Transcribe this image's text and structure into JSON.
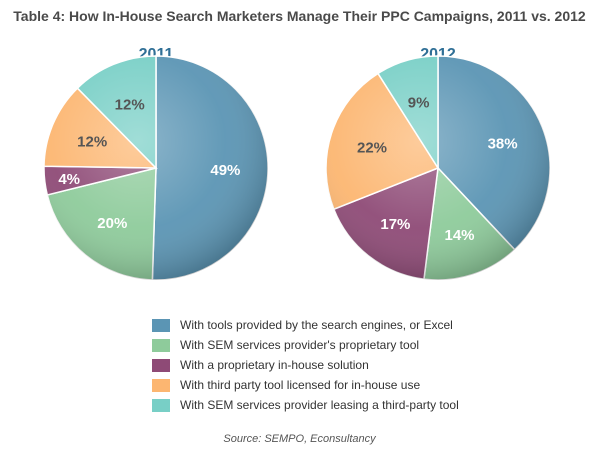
{
  "title": "Table 4: How In-House Search Marketers Manage Their PPC Campaigns, 2011 vs. 2012",
  "source": "Source: SEMPO, Econsultancy",
  "legend": [
    {
      "label": "With tools provided by the search engines, or Excel",
      "color": "#5b95b4"
    },
    {
      "label": "With SEM services provider's proprietary tool",
      "color": "#8ecb9b"
    },
    {
      "label": "With a proprietary in-house solution",
      "color": "#8e4a76"
    },
    {
      "label": "With third party tool licensed for in-house use",
      "color": "#fcb671"
    },
    {
      "label": "With SEM services provider leasing a third-party tool",
      "color": "#78cfc6"
    }
  ],
  "chart_data": [
    {
      "type": "pie",
      "title": "2011",
      "categories": [
        "With tools provided by the search engines, or Excel",
        "With SEM services provider's proprietary tool",
        "With a proprietary in-house solution",
        "With third party tool licensed for in-house use",
        "With SEM services provider leasing a third-party tool"
      ],
      "values": [
        49,
        20,
        4,
        12,
        12
      ],
      "labels": [
        "49%",
        "20%",
        "4%",
        "12%",
        "12%"
      ]
    },
    {
      "type": "pie",
      "title": "2012",
      "categories": [
        "With tools provided by the search engines, or Excel",
        "With SEM services provider's proprietary tool",
        "With a proprietary in-house solution",
        "With third party tool licensed for in-house use",
        "With SEM services provider leasing a third-party tool"
      ],
      "values": [
        38,
        14,
        17,
        22,
        9
      ],
      "labels": [
        "38%",
        "14%",
        "17%",
        "22%",
        "9%"
      ]
    }
  ]
}
